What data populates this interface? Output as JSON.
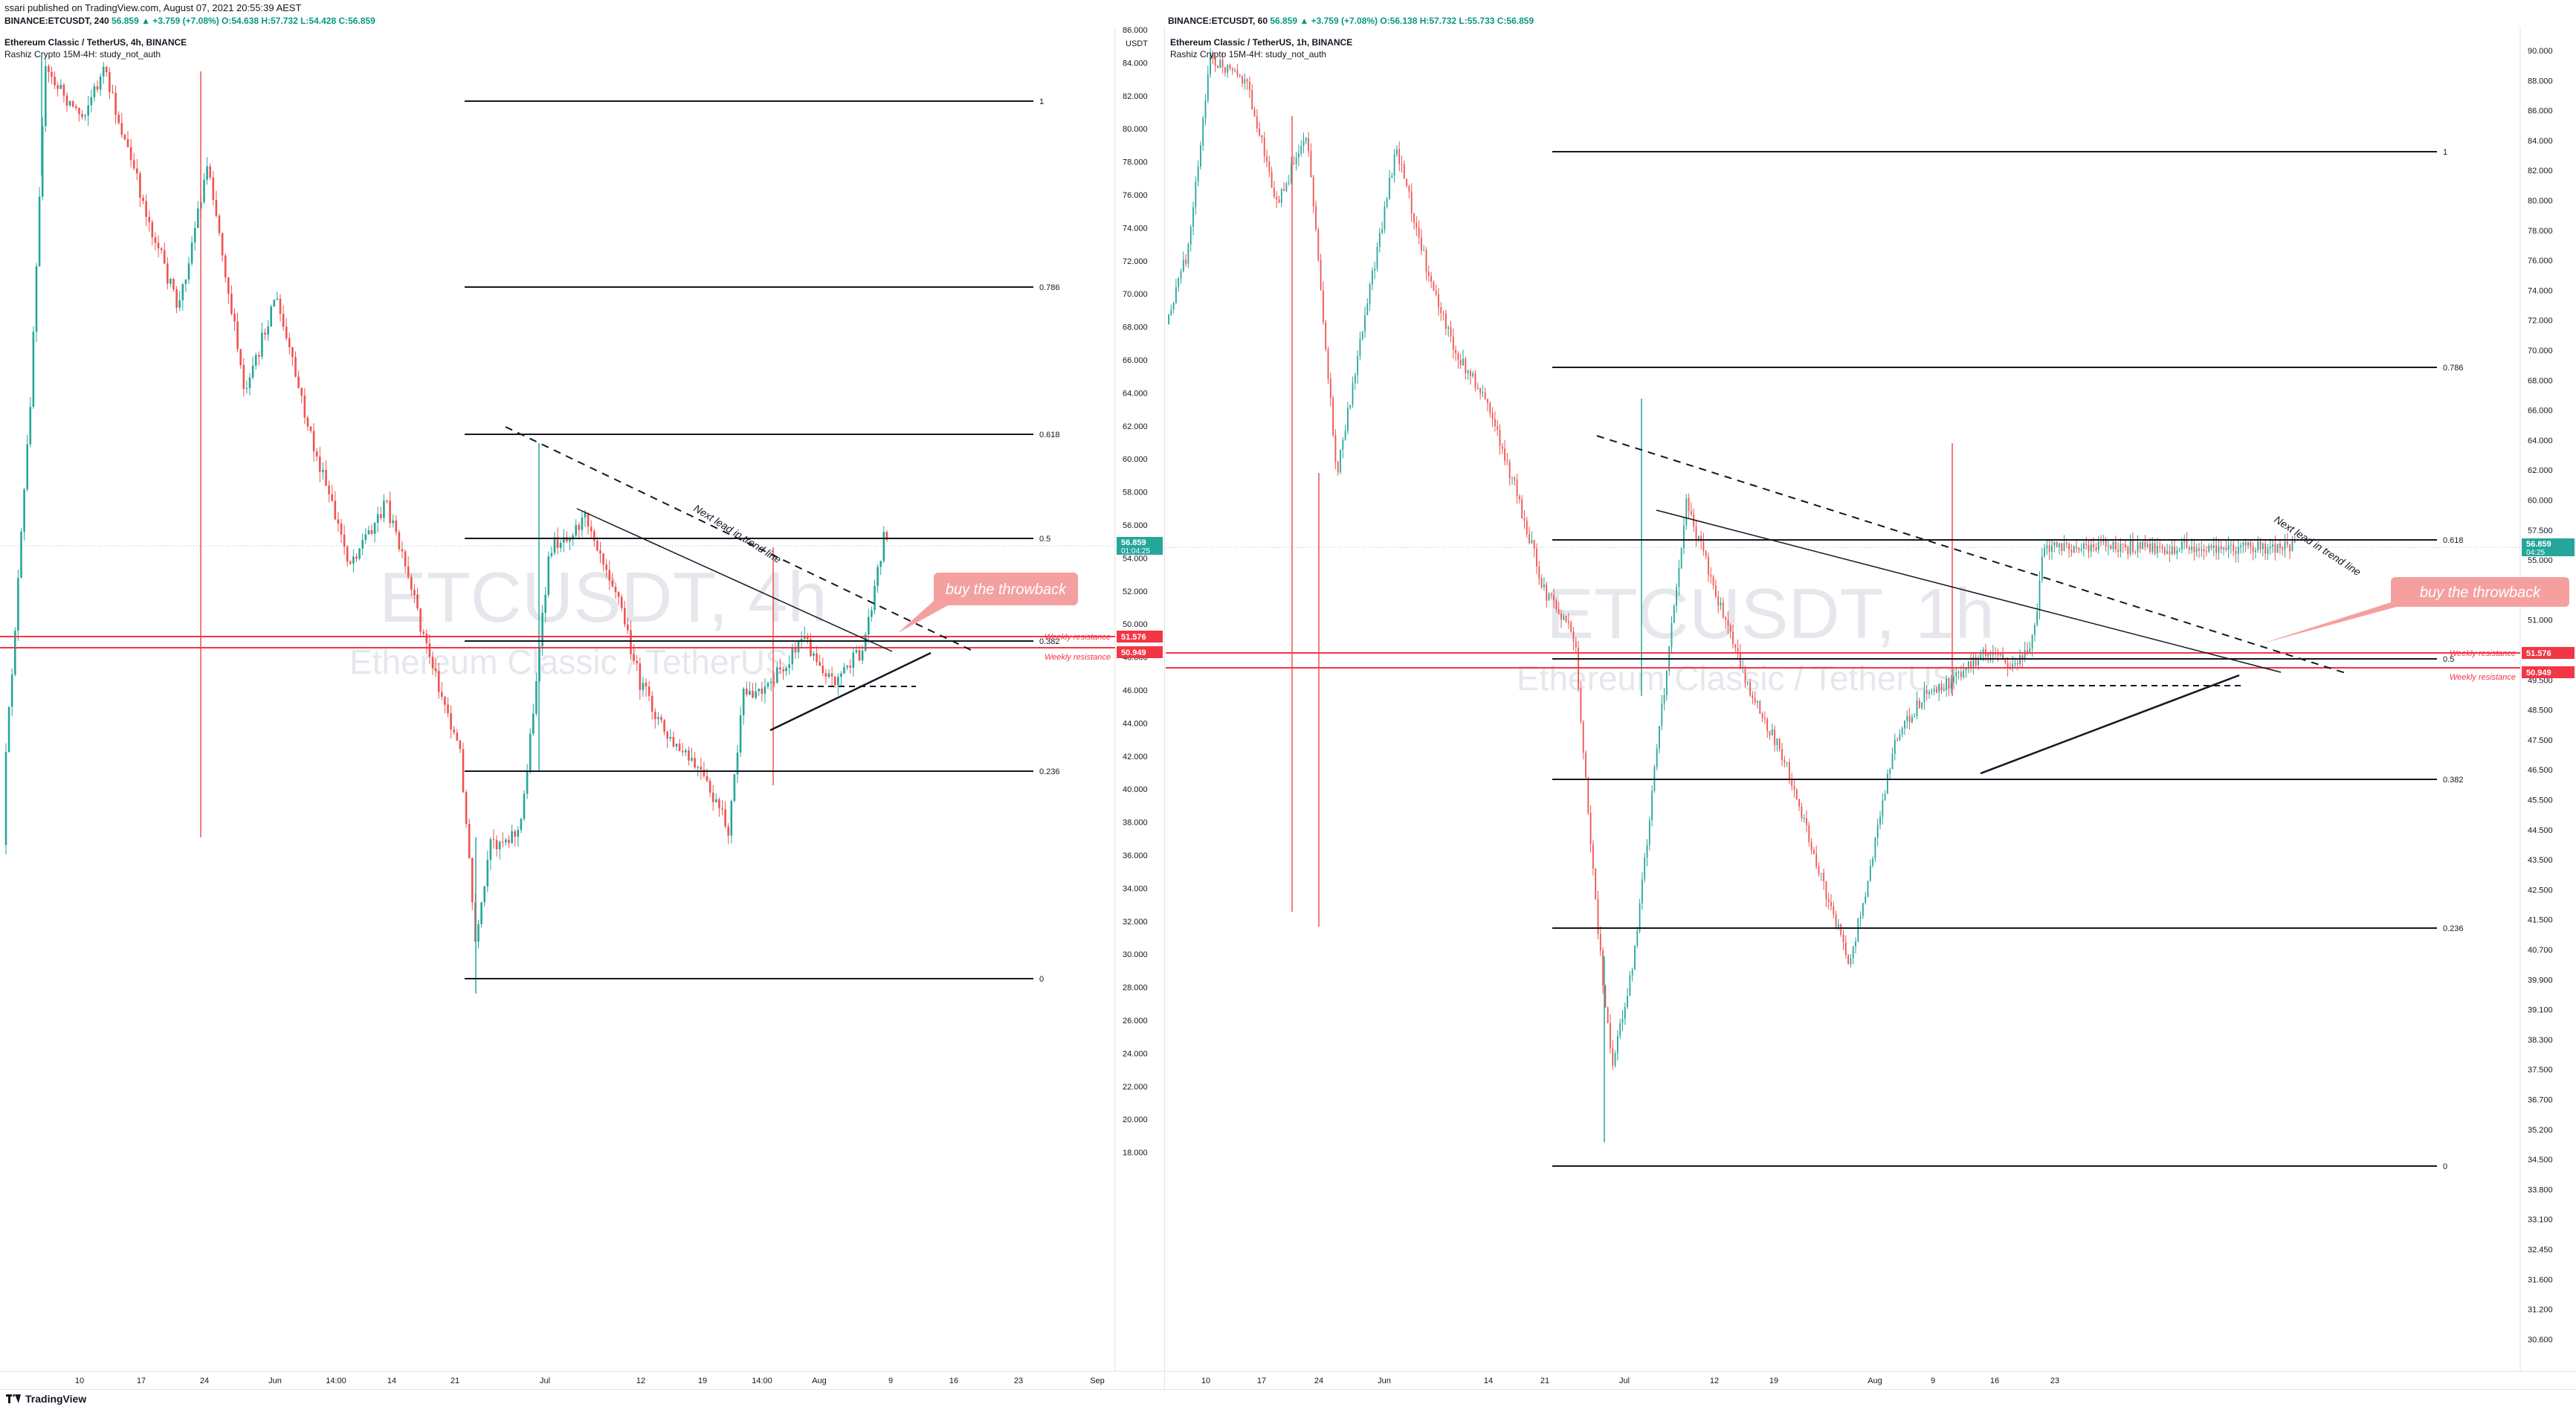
{
  "header": {
    "published": "ssari published on TradingView.com, August 07, 2021 20:55:39 AEST",
    "symbol_line_prefix": "BINANCE:ETCUSDT, 240",
    "symbol_line_values": "56.859 ▲ +3.759 (+7.08%) O:54.638 H:57.732 L:54.428 C:56.859"
  },
  "left": {
    "title": "Ethereum Classic / TetherUS, 4h, BINANCE",
    "study": "Rashiz Crypto 15M-4H: study_not_auth",
    "watermark": "ETCUSDT, 4h",
    "watermark_sub": "Ethereum Classic / TetherUS",
    "axis_unit": "USDT",
    "price_labels": [
      "86.000",
      "84.000",
      "82.000",
      "80.000",
      "78.000",
      "76.000",
      "74.000",
      "72.000",
      "70.000",
      "68.000",
      "66.000",
      "64.000",
      "62.000",
      "60.000",
      "58.000",
      "56.000",
      "54.000",
      "52.000",
      "50.000",
      "48.000",
      "46.000",
      "44.000",
      "42.000",
      "40.000",
      "38.000",
      "36.000",
      "34.000",
      "32.000",
      "30.000",
      "28.000",
      "26.000",
      "24.000",
      "22.000",
      "20.000",
      "18.000"
    ],
    "time_labels": [
      "10",
      "17",
      "24",
      "Jun",
      "14:00",
      "14",
      "21",
      "Jul",
      "12",
      "19",
      "14:00",
      "Aug",
      "9",
      "16",
      "23",
      "Sep"
    ],
    "fib_labels": [
      "1",
      "0.786",
      "0.618",
      "0.5",
      "0.382",
      "0.236",
      "0"
    ],
    "current_price": "56.859",
    "countdown": "01:04:25",
    "res_high": "51.576",
    "res_low": "50.949",
    "weekly_label": "Weekly resistance",
    "trend_text": "Next lead in trend line",
    "callout": "buy the throwback"
  },
  "right": {
    "symbol_line_prefix": "BINANCE:ETCUSDT, 60",
    "symbol_line_values": "56.859 ▲ +3.759 (+7.08%) O:56.138 H:57.732 L:55.733 C:56.859",
    "title": "Ethereum Classic / TetherUS, 1h, BINANCE",
    "study": "Rashiz Crypto 15M-4H: study_not_auth",
    "watermark": "ETCUSDT, 1h",
    "watermark_sub": "Ethereum Classic / TetherUS",
    "price_labels": [
      "90.000",
      "88.000",
      "86.000",
      "84.000",
      "82.000",
      "80.000",
      "78.000",
      "76.000",
      "74.000",
      "72.000",
      "70.000",
      "68.000",
      "66.000",
      "64.000",
      "62.000",
      "60.000",
      "57.500",
      "55.000",
      "52.500",
      "51.000",
      "50.500",
      "49.500",
      "48.500",
      "47.500",
      "46.500",
      "45.500",
      "44.500",
      "43.500",
      "42.500",
      "41.500",
      "40.700",
      "39.900",
      "39.100",
      "38.300",
      "37.500",
      "36.700",
      "35.200",
      "34.500",
      "33.800",
      "33.100",
      "32.450",
      "31.600",
      "31.200",
      "30.600"
    ],
    "time_labels": [
      "10",
      "17",
      "24",
      "Jun",
      "14",
      "21",
      "Jul",
      "12",
      "19",
      "Aug",
      "9",
      "16",
      "23"
    ],
    "fib_labels": [
      "1",
      "0.786",
      "0.618",
      "0.5",
      "0.382",
      "0.236",
      "0"
    ],
    "current_price": "56.859",
    "countdown": "04:25",
    "res_high": "51.576",
    "res_low": "50.949",
    "weekly_label": "Weekly resistance",
    "trend_text": "Next lead in trend line",
    "callout": "buy the throwback"
  },
  "footer": {
    "brand": "TradingView"
  },
  "colors": {
    "up": "#26a69a",
    "down": "#ef5350",
    "resistance": "#f23645",
    "callout": "#f4a0a0",
    "price_tag": "#26a69a"
  }
}
